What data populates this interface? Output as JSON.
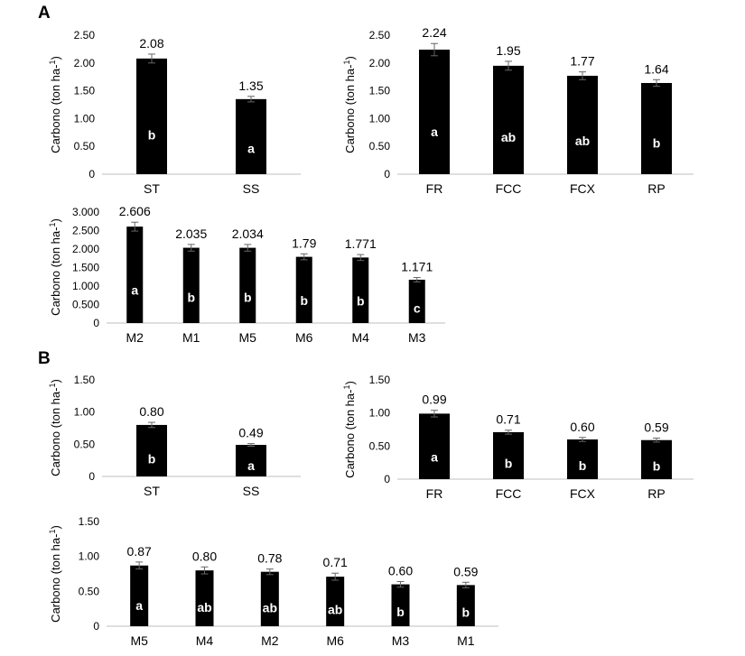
{
  "panels": [
    {
      "label": "A"
    },
    {
      "label": "B"
    }
  ],
  "chart_data": [
    {
      "type": "bar",
      "panel": "A",
      "ylabel": "Carbono (ton ha-1)",
      "ylim": [
        0,
        2.5
      ],
      "yticks": [
        "0",
        "0.50",
        "1.00",
        "1.50",
        "2.00",
        "2.50"
      ],
      "categories": [
        "ST",
        "SS"
      ],
      "values": [
        2.08,
        1.35
      ],
      "value_labels": [
        "2.08",
        "1.35"
      ],
      "error": [
        0.08,
        0.05
      ],
      "letters": [
        "b",
        "a"
      ]
    },
    {
      "type": "bar",
      "panel": "A",
      "ylabel": "Carbono (ton ha-1)",
      "ylim": [
        0,
        2.5
      ],
      "yticks": [
        "0",
        "0.50",
        "1.00",
        "1.50",
        "2.00",
        "2.50"
      ],
      "categories": [
        "FR",
        "FCC",
        "FCX",
        "RP"
      ],
      "values": [
        2.24,
        1.95,
        1.77,
        1.64
      ],
      "value_labels": [
        "2.24",
        "1.95",
        "1.77",
        "1.64"
      ],
      "error": [
        0.11,
        0.08,
        0.07,
        0.06
      ],
      "letters": [
        "a",
        "ab",
        "ab",
        "b"
      ]
    },
    {
      "type": "bar",
      "panel": "A",
      "ylabel": "Carbono (ton ha-1)",
      "ylim": [
        0,
        3
      ],
      "yticks": [
        "0",
        "0.500",
        "1.000",
        "1.500",
        "2.000",
        "2.500",
        "3.000"
      ],
      "categories": [
        "M2",
        "M1",
        "M5",
        "M6",
        "M4",
        "M3"
      ],
      "values": [
        2.606,
        2.035,
        2.034,
        1.79,
        1.771,
        1.171
      ],
      "value_labels": [
        "2.606",
        "2.035",
        "2.034",
        "1.79",
        "1.771",
        "1.171"
      ],
      "error": [
        0.12,
        0.09,
        0.09,
        0.08,
        0.08,
        0.06
      ],
      "letters": [
        "a",
        "b",
        "b",
        "b",
        "b",
        "c"
      ]
    },
    {
      "type": "bar",
      "panel": "B",
      "ylabel": "Carbono (ton ha-1)",
      "ylim": [
        0,
        1.5
      ],
      "yticks": [
        "0",
        "0.50",
        "1.00",
        "1.50"
      ],
      "categories": [
        "ST",
        "SS"
      ],
      "values": [
        0.8,
        0.49
      ],
      "value_labels": [
        "0.80",
        "0.49"
      ],
      "error": [
        0.04,
        0.02
      ],
      "letters": [
        "b",
        "a"
      ]
    },
    {
      "type": "bar",
      "panel": "B",
      "ylabel": "Carbono (ton ha-1)",
      "ylim": [
        0,
        1.5
      ],
      "yticks": [
        "0",
        "0.50",
        "1.00",
        "1.50"
      ],
      "categories": [
        "FR",
        "FCC",
        "FCX",
        "RP"
      ],
      "values": [
        0.99,
        0.71,
        0.6,
        0.59
      ],
      "value_labels": [
        "0.99",
        "0.71",
        "0.60",
        "0.59"
      ],
      "error": [
        0.05,
        0.03,
        0.03,
        0.03
      ],
      "letters": [
        "a",
        "b",
        "b",
        "b"
      ]
    },
    {
      "type": "bar",
      "panel": "B",
      "ylabel": "Carbono (ton ha-1)",
      "ylim": [
        0,
        1.5
      ],
      "yticks": [
        "0",
        "0.50",
        "1.00",
        "1.50"
      ],
      "categories": [
        "M5",
        "M4",
        "M2",
        "M6",
        "M3",
        "M1"
      ],
      "values": [
        0.87,
        0.8,
        0.78,
        0.71,
        0.6,
        0.59
      ],
      "value_labels": [
        "0.87",
        "0.80",
        "0.78",
        "0.71",
        "0.60",
        "0.59"
      ],
      "error": [
        0.05,
        0.05,
        0.04,
        0.05,
        0.04,
        0.04
      ],
      "letters": [
        "a",
        "ab",
        "ab",
        "ab",
        "b",
        "b"
      ]
    }
  ]
}
